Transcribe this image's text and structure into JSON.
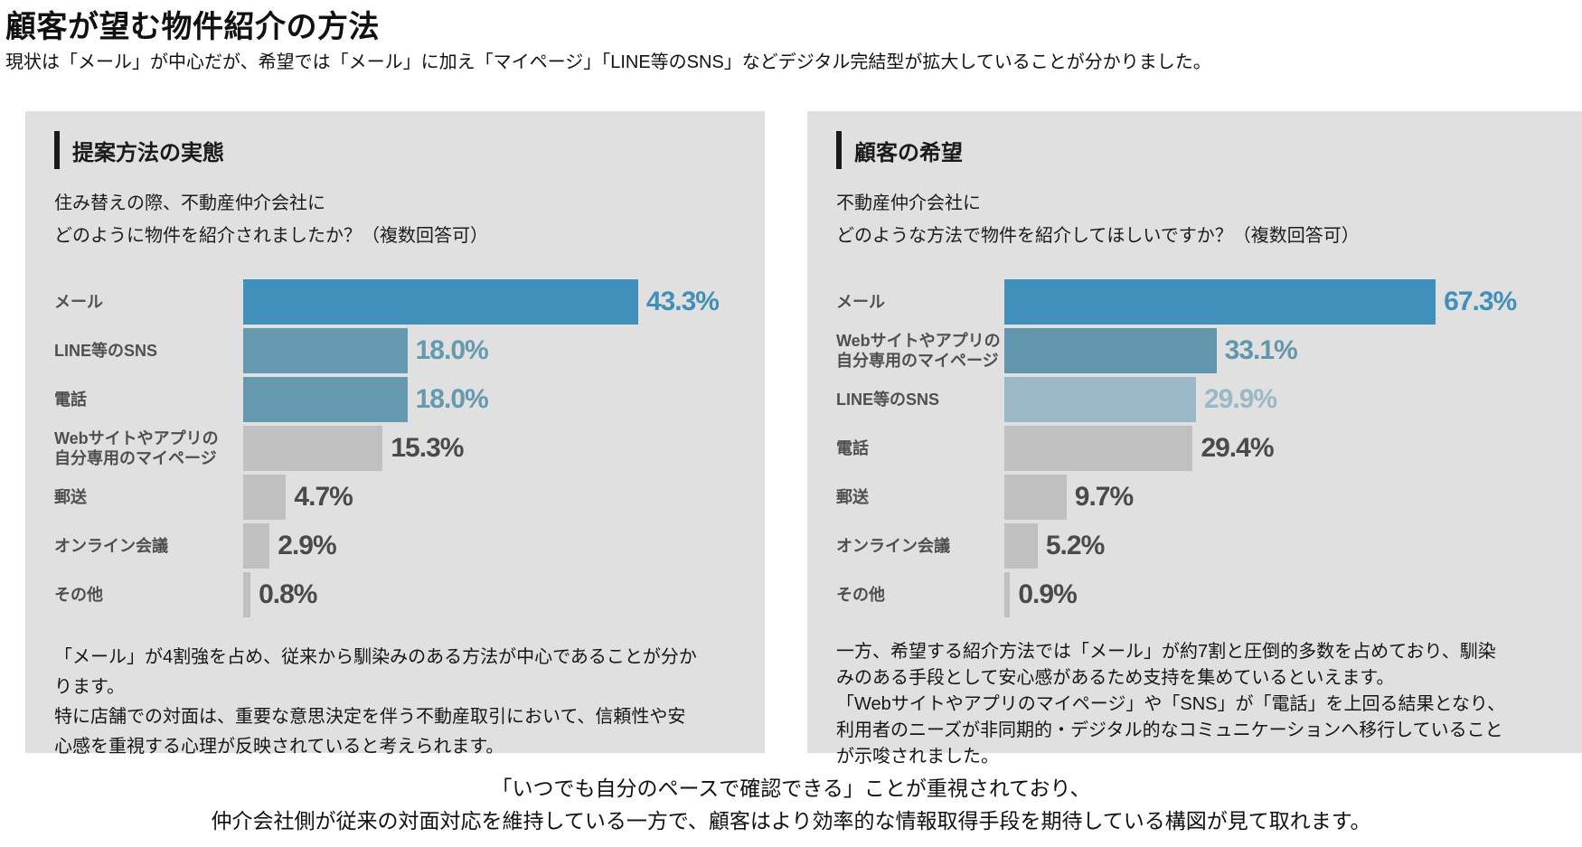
{
  "page": {
    "title": "顧客が望む物件紹介の方法",
    "subtitle": "現状は「メール」が中心だが、希望では「メール」に加え「マイページ」「LINE等のSNS」などデジタル完結型が拡大していることが分かりました。",
    "footer_lines": [
      "「いつでも自分のペースで確認できる」ことが重視されており、",
      "仲介会社側が従来の対面対応を維持している一方で、顧客はより効率的な情報取得手段を期待している構図が見て取れます。"
    ]
  },
  "colors": {
    "panel_bg": "#e0e0e0",
    "accent_bar": "#1a1a1a",
    "steel_blue": "#4190ba",
    "teal_blue": "#6499af",
    "pale_blue": "#9ab8c6",
    "gray_bar": "#c0c0c0",
    "dark_value": "#4a4a4a"
  },
  "charts": [
    {
      "section_title": "提案方法の実態",
      "question_lines": [
        "住み替えの際、不動産仲介会社に",
        "どのように物件を紹介されましたか？（複数回答可）"
      ],
      "rows": [
        {
          "label": "メール",
          "value": 43.3,
          "display": "43.3%",
          "bar_color": "#4190ba",
          "value_color": "#4190ba"
        },
        {
          "label": "LINE等のSNS",
          "value": 18.0,
          "display": "18.0%",
          "bar_color": "#6499af",
          "value_color": "#6499af"
        },
        {
          "label": "電話",
          "value": 18.0,
          "display": "18.0%",
          "bar_color": "#6499af",
          "value_color": "#6499af"
        },
        {
          "label": "Webサイトやアプリの\n自分専用のマイページ",
          "value": 15.3,
          "display": "15.3%",
          "bar_color": "#c0c0c0",
          "value_color": "#4a4a4a"
        },
        {
          "label": "郵送",
          "value": 4.7,
          "display": "4.7%",
          "bar_color": "#c0c0c0",
          "value_color": "#4a4a4a"
        },
        {
          "label": "オンライン会議",
          "value": 2.9,
          "display": "2.9%",
          "bar_color": "#c0c0c0",
          "value_color": "#4a4a4a"
        },
        {
          "label": "その他",
          "value": 0.8,
          "display": "0.8%",
          "bar_color": "#c0c0c0",
          "value_color": "#4a4a4a"
        }
      ],
      "note_lines": [
        "「メール」が4割強を占め、従来から馴染みのある方法が中心であることが分か",
        "ります。",
        "特に店舗での対面は、重要な意思決定を伴う不動産取引において、信頼性や安",
        "心感を重視する心理が反映されていると考えられます。"
      ]
    },
    {
      "section_title": "顧客の希望",
      "question_lines": [
        "不動産仲介会社に",
        "どのような方法で物件を紹介してほしいですか？（複数回答可）"
      ],
      "rows": [
        {
          "label": "メール",
          "value": 67.3,
          "display": "67.3%",
          "bar_color": "#4190ba",
          "value_color": "#4190ba"
        },
        {
          "label": "Webサイトやアプリの\n自分専用のマイページ",
          "value": 33.1,
          "display": "33.1%",
          "bar_color": "#6296ac",
          "value_color": "#6296ac"
        },
        {
          "label": "LINE等のSNS",
          "value": 29.9,
          "display": "29.9%",
          "bar_color": "#9ab8c6",
          "value_color": "#9ab8c6"
        },
        {
          "label": "電話",
          "value": 29.4,
          "display": "29.4%",
          "bar_color": "#c0c0c0",
          "value_color": "#4a4a4a"
        },
        {
          "label": "郵送",
          "value": 9.7,
          "display": "9.7%",
          "bar_color": "#c0c0c0",
          "value_color": "#4a4a4a"
        },
        {
          "label": "オンライン会議",
          "value": 5.2,
          "display": "5.2%",
          "bar_color": "#c0c0c0",
          "value_color": "#4a4a4a"
        },
        {
          "label": "その他",
          "value": 0.9,
          "display": "0.9%",
          "bar_color": "#c0c0c0",
          "value_color": "#4a4a4a"
        }
      ],
      "note_lines": [
        "一方、希望する紹介方法では「メール」が約7割と圧倒的多数を占めており、馴染",
        "みのある手段として安心感があるため支持を集めているといえます。",
        "「Webサイトやアプリのマイページ」や「SNS」が「電話」を上回る結果となり、",
        "利用者のニーズが非同期的・デジタル的なコミュニケーションへ移行していること",
        "が示唆されました。"
      ]
    }
  ],
  "chart_data": [
    {
      "type": "bar",
      "orientation": "horizontal",
      "title": "提案方法の実態",
      "subtitle": "住み替えの際、不動産仲介会社にどのように物件を紹介されましたか？（複数回答可）",
      "categories": [
        "メール",
        "LINE等のSNS",
        "電話",
        "Webサイトやアプリの自分専用のマイページ",
        "郵送",
        "オンライン会議",
        "その他"
      ],
      "values": [
        43.3,
        18.0,
        18.0,
        15.3,
        4.7,
        2.9,
        0.8
      ],
      "unit": "%",
      "xlim": [
        0,
        45
      ],
      "grid": false,
      "legend": false,
      "value_labels": "end-of-bar"
    },
    {
      "type": "bar",
      "orientation": "horizontal",
      "title": "顧客の希望",
      "subtitle": "不動産仲介会社にどのような方法で物件を紹介してほしいですか？（複数回答可）",
      "categories": [
        "メール",
        "Webサイトやアプリの自分専用のマイページ",
        "LINE等のSNS",
        "電話",
        "郵送",
        "オンライン会議",
        "その他"
      ],
      "values": [
        67.3,
        33.1,
        29.9,
        29.4,
        9.7,
        5.2,
        0.9
      ],
      "unit": "%",
      "xlim": [
        0,
        70
      ],
      "grid": false,
      "legend": false,
      "value_labels": "end-of-bar"
    }
  ]
}
